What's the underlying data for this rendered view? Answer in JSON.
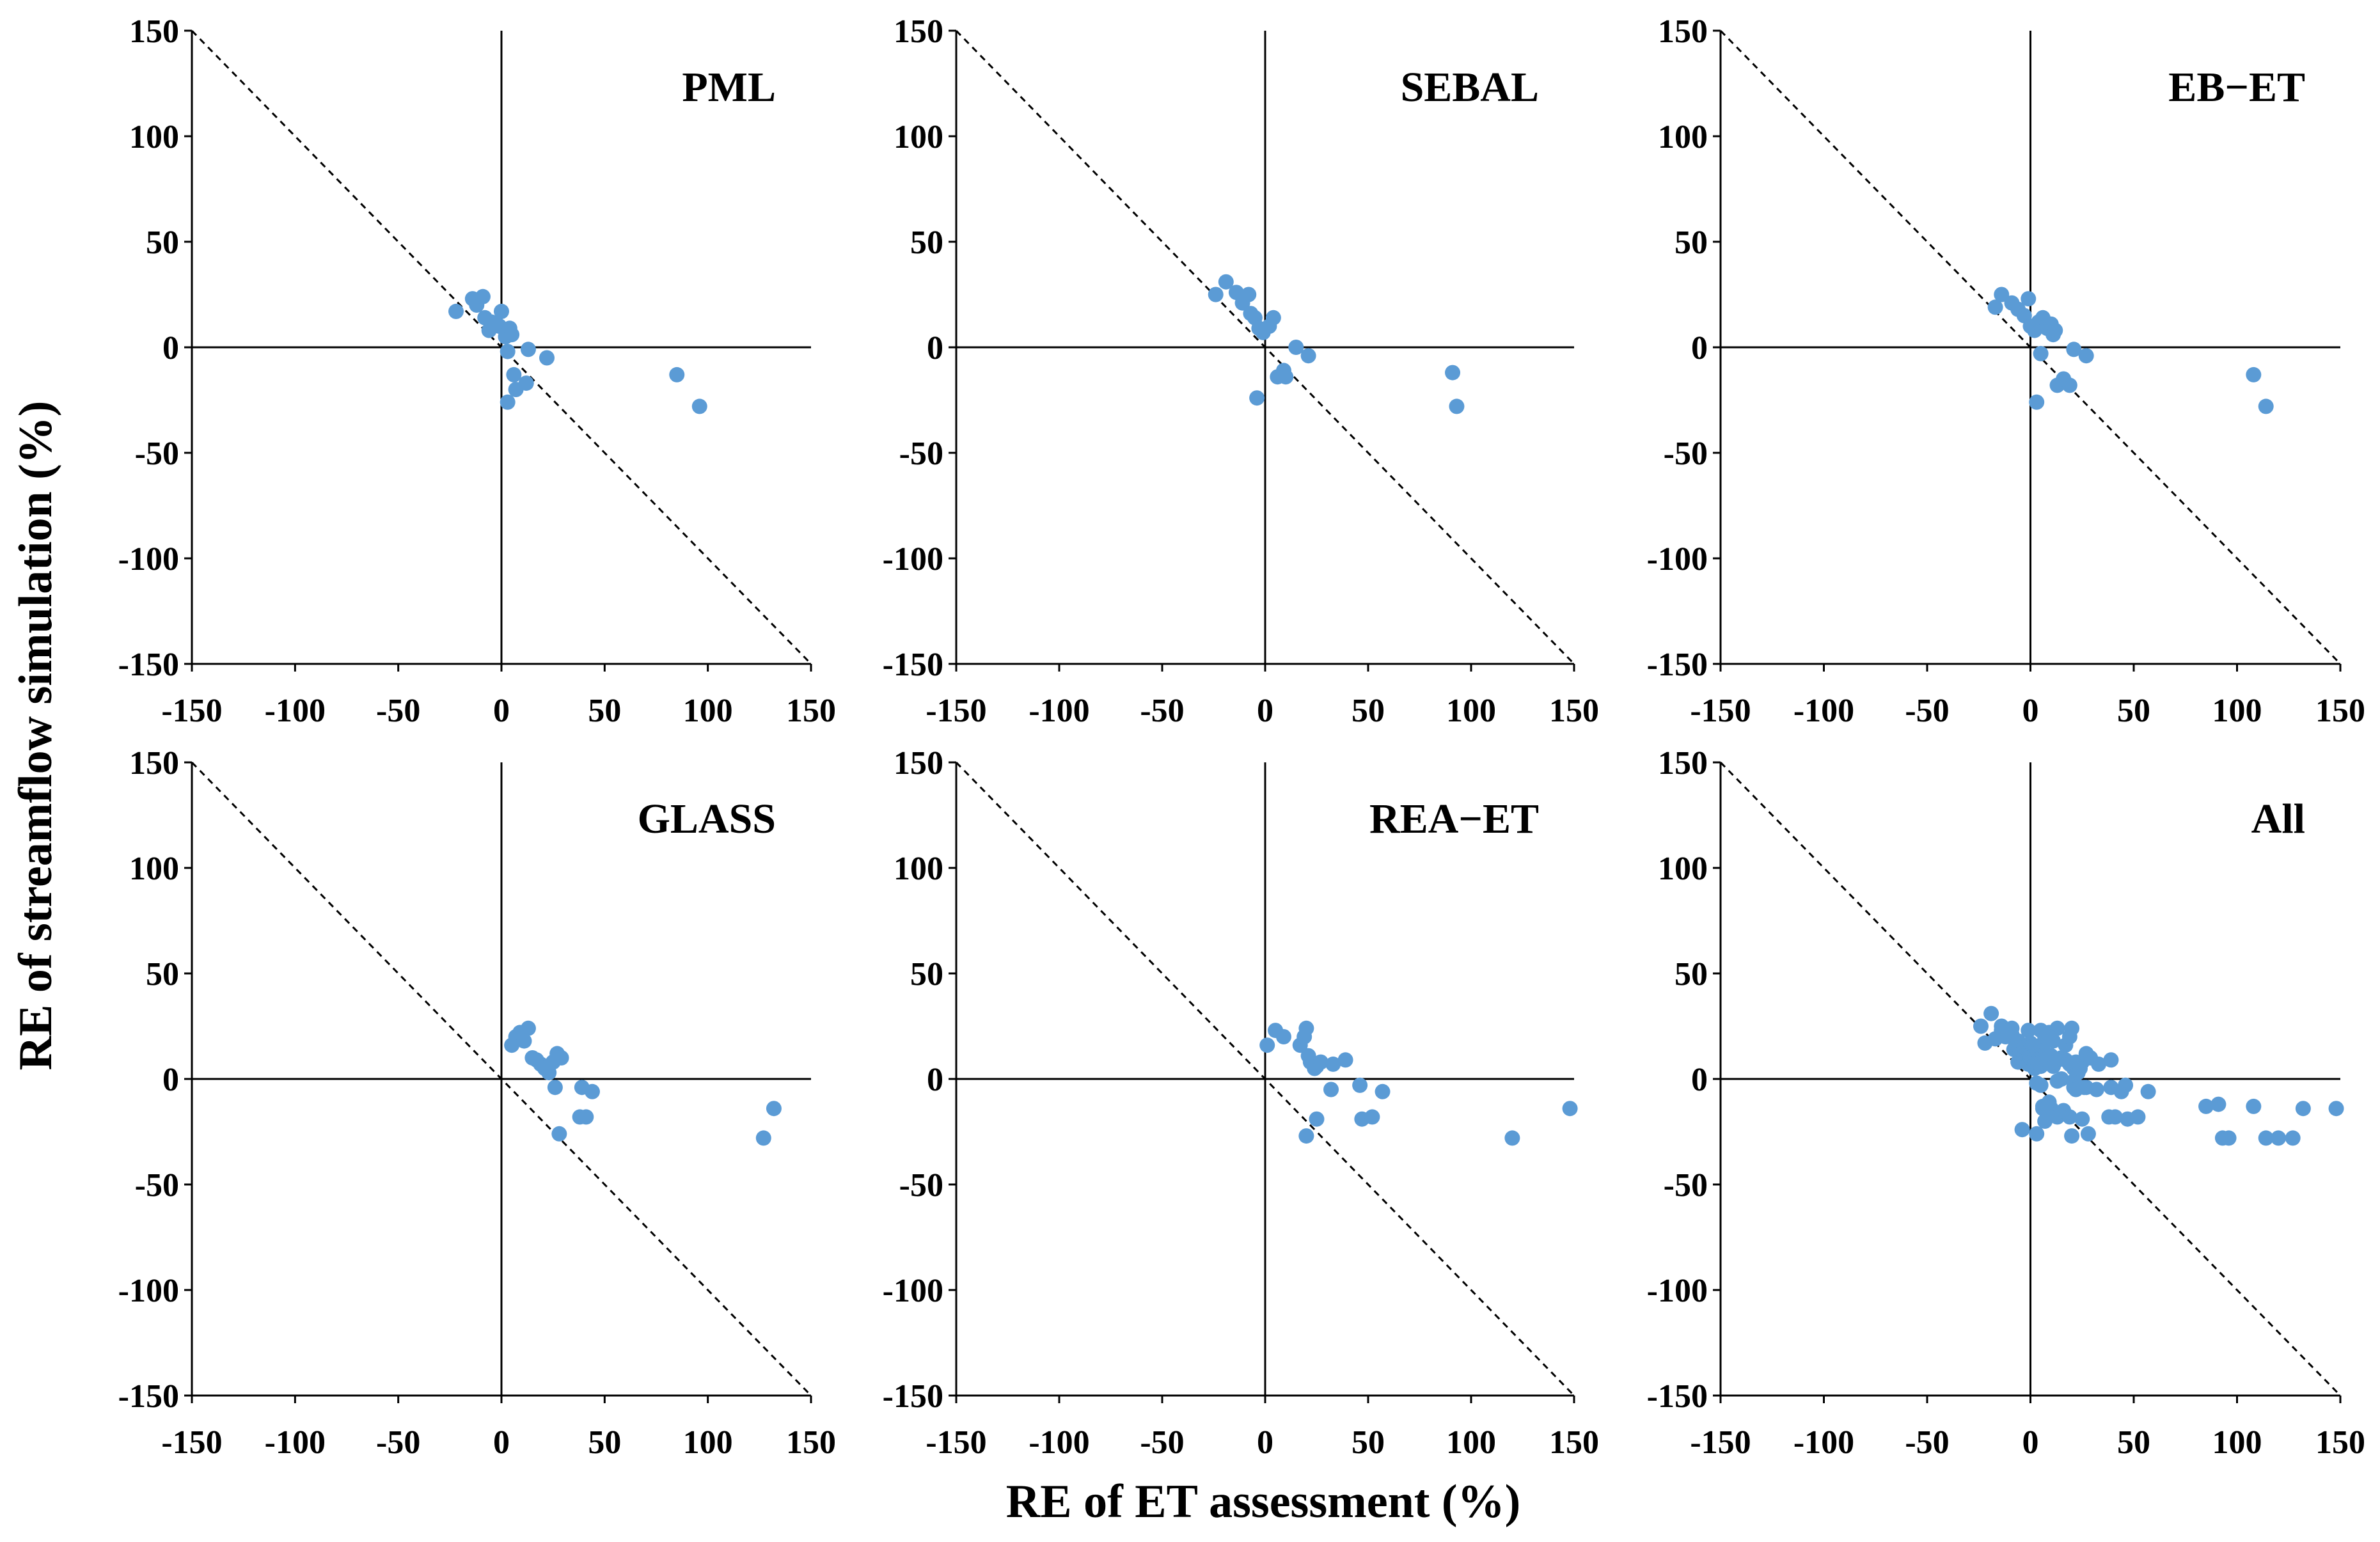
{
  "figure": {
    "xlabel": "RE of ET assessment (%)",
    "ylabel": "RE of streamflow simulation (%)"
  },
  "colors": {
    "point": "#5b9bd5",
    "axis": "#000000",
    "diagonal": "#000000"
  },
  "chart_data": [
    {
      "type": "scatter",
      "title": "PML",
      "xlim": [
        -150,
        150
      ],
      "ylim": [
        -150,
        150
      ],
      "xticks": [
        -150,
        -100,
        -50,
        0,
        50,
        100,
        150
      ],
      "yticks": [
        -150,
        -100,
        -50,
        0,
        50,
        100,
        150
      ],
      "points": [
        [
          -22,
          17
        ],
        [
          -14,
          23
        ],
        [
          -12,
          20
        ],
        [
          -9,
          24
        ],
        [
          -8,
          14
        ],
        [
          -6,
          8
        ],
        [
          -5,
          12
        ],
        [
          -3,
          11
        ],
        [
          -1,
          10
        ],
        [
          0,
          17
        ],
        [
          2,
          5
        ],
        [
          3,
          -2
        ],
        [
          4,
          9
        ],
        [
          5,
          6
        ],
        [
          6,
          -13
        ],
        [
          7,
          -20
        ],
        [
          3,
          -26
        ],
        [
          12,
          -17
        ],
        [
          13,
          -1
        ],
        [
          22,
          -5
        ],
        [
          85,
          -13
        ],
        [
          96,
          -28
        ]
      ]
    },
    {
      "type": "scatter",
      "title": "SEBAL",
      "xlim": [
        -150,
        150
      ],
      "ylim": [
        -150,
        150
      ],
      "xticks": [
        -150,
        -100,
        -50,
        0,
        50,
        100,
        150
      ],
      "yticks": [
        -150,
        -100,
        -50,
        0,
        50,
        100,
        150
      ],
      "points": [
        [
          -24,
          25
        ],
        [
          -19,
          31
        ],
        [
          -14,
          26
        ],
        [
          -11,
          21
        ],
        [
          -8,
          25
        ],
        [
          -7,
          16
        ],
        [
          -5,
          14
        ],
        [
          -3,
          9
        ],
        [
          -1,
          7
        ],
        [
          2,
          10
        ],
        [
          4,
          14
        ],
        [
          6,
          -14
        ],
        [
          -4,
          -24
        ],
        [
          9,
          -11
        ],
        [
          10,
          -14
        ],
        [
          15,
          0
        ],
        [
          21,
          -4
        ],
        [
          91,
          -12
        ],
        [
          93,
          -28
        ]
      ]
    },
    {
      "type": "scatter",
      "title": "EB−ET",
      "xlim": [
        -150,
        150
      ],
      "ylim": [
        -150,
        150
      ],
      "xticks": [
        -150,
        -100,
        -50,
        0,
        50,
        100,
        150
      ],
      "yticks": [
        -150,
        -100,
        -50,
        0,
        50,
        100,
        150
      ],
      "points": [
        [
          -17,
          19
        ],
        [
          -14,
          25
        ],
        [
          -9,
          21
        ],
        [
          -6,
          18
        ],
        [
          -3,
          15
        ],
        [
          -1,
          23
        ],
        [
          0,
          10
        ],
        [
          2,
          8
        ],
        [
          4,
          12
        ],
        [
          5,
          -3
        ],
        [
          6,
          14
        ],
        [
          8,
          9
        ],
        [
          10,
          11
        ],
        [
          11,
          6
        ],
        [
          12,
          8
        ],
        [
          13,
          -18
        ],
        [
          16,
          -15
        ],
        [
          19,
          -18
        ],
        [
          3,
          -26
        ],
        [
          21,
          -1
        ],
        [
          27,
          -4
        ],
        [
          108,
          -13
        ],
        [
          114,
          -28
        ]
      ]
    },
    {
      "type": "scatter",
      "title": "GLASS",
      "xlim": [
        -150,
        150
      ],
      "ylim": [
        -150,
        150
      ],
      "xticks": [
        -150,
        -100,
        -50,
        0,
        50,
        100,
        150
      ],
      "yticks": [
        -150,
        -100,
        -50,
        0,
        50,
        100,
        150
      ],
      "points": [
        [
          5,
          16
        ],
        [
          7,
          20
        ],
        [
          9,
          22
        ],
        [
          11,
          18
        ],
        [
          13,
          24
        ],
        [
          15,
          10
        ],
        [
          17,
          9
        ],
        [
          19,
          7
        ],
        [
          21,
          5
        ],
        [
          23,
          3
        ],
        [
          25,
          8
        ],
        [
          27,
          12
        ],
        [
          29,
          10
        ],
        [
          26,
          -4
        ],
        [
          28,
          -26
        ],
        [
          38,
          -18
        ],
        [
          39,
          -4
        ],
        [
          41,
          -18
        ],
        [
          44,
          -6
        ],
        [
          127,
          -28
        ],
        [
          132,
          -14
        ]
      ]
    },
    {
      "type": "scatter",
      "title": "REA−ET",
      "xlim": [
        -150,
        150
      ],
      "ylim": [
        -150,
        150
      ],
      "xticks": [
        -150,
        -100,
        -50,
        0,
        50,
        100,
        150
      ],
      "yticks": [
        -150,
        -100,
        -50,
        0,
        50,
        100,
        150
      ],
      "points": [
        [
          1,
          16
        ],
        [
          5,
          23
        ],
        [
          9,
          20
        ],
        [
          17,
          16
        ],
        [
          19,
          20
        ],
        [
          20,
          24
        ],
        [
          21,
          11
        ],
        [
          22,
          8
        ],
        [
          24,
          5
        ],
        [
          25,
          6
        ],
        [
          27,
          8
        ],
        [
          20,
          -27
        ],
        [
          25,
          -19
        ],
        [
          32,
          -5
        ],
        [
          33,
          7
        ],
        [
          39,
          9
        ],
        [
          46,
          -3
        ],
        [
          47,
          -19
        ],
        [
          52,
          -18
        ],
        [
          57,
          -6
        ],
        [
          120,
          -28
        ],
        [
          148,
          -14
        ]
      ]
    },
    {
      "type": "scatter",
      "title": "All",
      "xlim": [
        -150,
        150
      ],
      "ylim": [
        -150,
        150
      ],
      "xticks": [
        -150,
        -100,
        -50,
        0,
        50,
        100,
        150
      ],
      "yticks": [
        -150,
        -100,
        -50,
        0,
        50,
        100,
        150
      ],
      "points": [
        [
          -24,
          25
        ],
        [
          -22,
          17
        ],
        [
          -19,
          31
        ],
        [
          -17,
          19
        ],
        [
          -14,
          25
        ],
        [
          -14,
          23
        ],
        [
          -12,
          20
        ],
        [
          -11,
          21
        ],
        [
          -9,
          24
        ],
        [
          -9,
          21
        ],
        [
          -8,
          14
        ],
        [
          -7,
          16
        ],
        [
          -6,
          18
        ],
        [
          -6,
          8
        ],
        [
          -5,
          12
        ],
        [
          -5,
          14
        ],
        [
          -3,
          15
        ],
        [
          -3,
          11
        ],
        [
          -3,
          9
        ],
        [
          -1,
          23
        ],
        [
          -1,
          10
        ],
        [
          -1,
          7
        ],
        [
          0,
          17
        ],
        [
          0,
          10
        ],
        [
          2,
          5
        ],
        [
          2,
          8
        ],
        [
          2,
          10
        ],
        [
          3,
          -2
        ],
        [
          4,
          9
        ],
        [
          4,
          12
        ],
        [
          4,
          14
        ],
        [
          5,
          -3
        ],
        [
          5,
          6
        ],
        [
          6,
          14
        ],
        [
          6,
          -13
        ],
        [
          6,
          -14
        ],
        [
          7,
          -20
        ],
        [
          3,
          -26
        ],
        [
          -4,
          -24
        ],
        [
          8,
          9
        ],
        [
          9,
          -11
        ],
        [
          10,
          11
        ],
        [
          10,
          -14
        ],
        [
          11,
          6
        ],
        [
          12,
          8
        ],
        [
          12,
          -17
        ],
        [
          13,
          -1
        ],
        [
          13,
          -18
        ],
        [
          15,
          0
        ],
        [
          16,
          -15
        ],
        [
          19,
          -18
        ],
        [
          21,
          -1
        ],
        [
          21,
          -4
        ],
        [
          22,
          -5
        ],
        [
          27,
          -4
        ],
        [
          5,
          16
        ],
        [
          7,
          20
        ],
        [
          9,
          22
        ],
        [
          11,
          18
        ],
        [
          13,
          24
        ],
        [
          15,
          10
        ],
        [
          17,
          9
        ],
        [
          19,
          7
        ],
        [
          21,
          5
        ],
        [
          23,
          3
        ],
        [
          25,
          8
        ],
        [
          27,
          12
        ],
        [
          29,
          10
        ],
        [
          26,
          -4
        ],
        [
          28,
          -26
        ],
        [
          38,
          -18
        ],
        [
          39,
          -4
        ],
        [
          41,
          -18
        ],
        [
          44,
          -6
        ],
        [
          1,
          16
        ],
        [
          5,
          23
        ],
        [
          9,
          20
        ],
        [
          17,
          16
        ],
        [
          19,
          20
        ],
        [
          20,
          24
        ],
        [
          22,
          8
        ],
        [
          24,
          5
        ],
        [
          20,
          -27
        ],
        [
          25,
          -19
        ],
        [
          32,
          -5
        ],
        [
          33,
          7
        ],
        [
          39,
          9
        ],
        [
          46,
          -3
        ],
        [
          47,
          -19
        ],
        [
          52,
          -18
        ],
        [
          57,
          -6
        ],
        [
          85,
          -13
        ],
        [
          91,
          -12
        ],
        [
          93,
          -28
        ],
        [
          96,
          -28
        ],
        [
          108,
          -13
        ],
        [
          114,
          -28
        ],
        [
          120,
          -28
        ],
        [
          127,
          -28
        ],
        [
          132,
          -14
        ],
        [
          148,
          -14
        ]
      ]
    }
  ]
}
